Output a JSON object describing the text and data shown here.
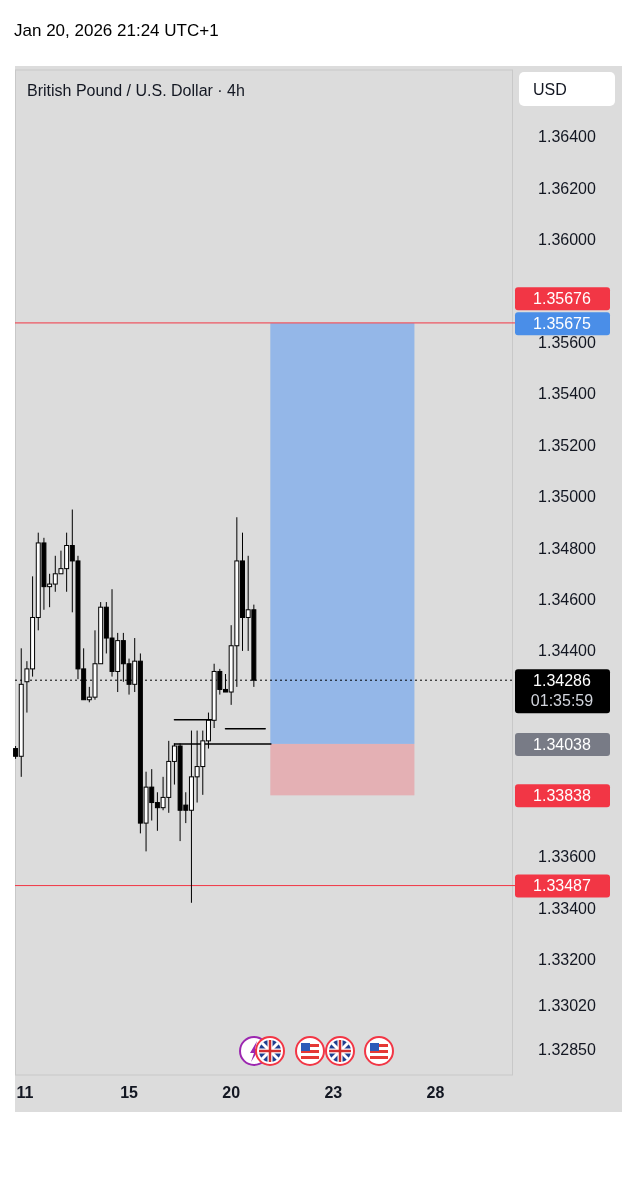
{
  "chart_data": {
    "type": "candlestick",
    "title": "British Pound / U.S. Dollar · 4h",
    "subtitle": "Jan 20, 2026 21:24 UTC+1",
    "ylabel": "USD",
    "categories": [
      null,
      "11",
      null,
      null,
      null,
      null,
      null,
      null,
      null,
      null,
      null,
      null,
      null,
      null,
      null,
      null,
      null,
      null,
      null,
      null,
      "15",
      null,
      null,
      null,
      null,
      null,
      null,
      null,
      null,
      null,
      null,
      null,
      null,
      null,
      null,
      null,
      null,
      null,
      "20",
      null,
      null,
      null,
      null,
      null,
      null,
      null,
      null,
      null,
      null,
      null,
      null,
      null,
      null,
      null,
      null,
      null,
      "23",
      null,
      null,
      null,
      null,
      null,
      null,
      null,
      null,
      null,
      null,
      null,
      null,
      null,
      null,
      null,
      null,
      null,
      "28",
      null,
      null,
      null,
      null,
      null,
      null,
      null,
      null,
      null,
      null,
      null,
      null,
      null
    ],
    "ohlc": [
      [
        1.3402,
        1.3403,
        1.3398,
        1.3399
      ],
      [
        1.3399,
        1.3441,
        1.3391,
        1.3427
      ],
      [
        1.3428,
        1.3436,
        1.3416,
        1.3433
      ],
      [
        1.3433,
        1.3469,
        1.343,
        1.3453
      ],
      [
        1.3453,
        1.3486,
        1.3448,
        1.3482
      ],
      [
        1.3482,
        1.3484,
        1.3456,
        1.3465
      ],
      [
        1.3465,
        1.347,
        1.3457,
        1.3466
      ],
      [
        1.3466,
        1.3477,
        1.3463,
        1.347
      ],
      [
        1.347,
        1.3479,
        1.347,
        1.3472
      ],
      [
        1.3472,
        1.3486,
        1.3463,
        1.3481
      ],
      [
        1.3481,
        1.3495,
        1.3455,
        1.3475
      ],
      [
        1.3475,
        1.3477,
        1.3429,
        1.3433
      ],
      [
        1.3433,
        1.3441,
        1.3421,
        1.3421
      ],
      [
        1.3421,
        1.3426,
        1.342,
        1.3422
      ],
      [
        1.3422,
        1.3448,
        1.3421,
        1.3435
      ],
      [
        1.3435,
        1.3459,
        1.3435,
        1.3457
      ],
      [
        1.3457,
        1.3459,
        1.3439,
        1.3445
      ],
      [
        1.3445,
        1.3464,
        1.343,
        1.3432
      ],
      [
        1.3432,
        1.3447,
        1.3424,
        1.3444
      ],
      [
        1.3444,
        1.3447,
        1.3428,
        1.3435
      ],
      [
        1.3435,
        1.3437,
        1.3423,
        1.3427
      ],
      [
        1.3427,
        1.3445,
        1.3424,
        1.3436
      ],
      [
        1.3436,
        1.3439,
        1.3369,
        1.3373
      ],
      [
        1.3373,
        1.3393,
        1.3362,
        1.3387
      ],
      [
        1.3387,
        1.3394,
        1.3374,
        1.3381
      ],
      [
        1.3381,
        1.3385,
        1.337,
        1.3379
      ],
      [
        1.3379,
        1.3391,
        1.3378,
        1.3383
      ],
      [
        1.3383,
        1.3405,
        1.3377,
        1.3397
      ],
      [
        1.3397,
        1.3404,
        1.3388,
        1.3403
      ],
      [
        1.3403,
        1.3404,
        1.3366,
        1.3378
      ],
      [
        1.338,
        1.3385,
        1.3373,
        1.3378
      ],
      [
        1.3378,
        1.3409,
        1.3342,
        1.3391
      ],
      [
        1.3391,
        1.3409,
        1.3381,
        1.3395
      ],
      [
        1.3395,
        1.3409,
        1.3384,
        1.3405
      ],
      [
        1.3405,
        1.3416,
        1.3402,
        1.3413
      ],
      [
        1.3413,
        1.3435,
        1.341,
        1.3432
      ],
      [
        1.3432,
        1.3433,
        1.3423,
        1.3425
      ],
      [
        1.3425,
        1.3431,
        1.3424,
        1.3424
      ],
      [
        1.3424,
        1.345,
        1.3419,
        1.3442
      ],
      [
        1.3442,
        1.3492,
        1.3426,
        1.3475
      ],
      [
        1.3475,
        1.3486,
        1.344,
        1.3453
      ],
      [
        1.3453,
        1.3477,
        1.344,
        1.3456
      ],
      [
        1.3456,
        1.3458,
        1.3426,
        1.34286
      ],
      null,
      null,
      null,
      null,
      null,
      null,
      null,
      null,
      null,
      null,
      null,
      null,
      null,
      null,
      null,
      null,
      null,
      null,
      null,
      null,
      null,
      null,
      null,
      null,
      null,
      null,
      null,
      null,
      null,
      null,
      null,
      null,
      null,
      null,
      null,
      null,
      null,
      null,
      null,
      null,
      null,
      null,
      null,
      null,
      null
    ],
    "series": [
      {
        "type": "line",
        "color": "#000000",
        "values": [
          null,
          null,
          null,
          null,
          null,
          null,
          null,
          null,
          null,
          null,
          null,
          null,
          null,
          null,
          null,
          null,
          null,
          null,
          null,
          null,
          null,
          null,
          null,
          null,
          null,
          null,
          null,
          null,
          1.34132,
          1.34132,
          1.34132,
          1.34132,
          1.34132,
          1.34132,
          1.34132,
          1.34132,
          null,
          null,
          null,
          null,
          null,
          null,
          null,
          null,
          null,
          null,
          null,
          null,
          null,
          null,
          null,
          null,
          null,
          null,
          null,
          null,
          null,
          null,
          null,
          null,
          null,
          null,
          null,
          null,
          null,
          null,
          null,
          null,
          null,
          null,
          null,
          null,
          null,
          null,
          null,
          null,
          null,
          null,
          null,
          null,
          null,
          null,
          null,
          null,
          null,
          null,
          null,
          null
        ]
      },
      {
        "type": "line",
        "color": "#000000",
        "values": [
          null,
          null,
          null,
          null,
          null,
          null,
          null,
          null,
          null,
          null,
          null,
          null,
          null,
          null,
          null,
          null,
          null,
          null,
          null,
          null,
          null,
          null,
          null,
          null,
          null,
          null,
          null,
          null,
          1.34038,
          1.34038,
          1.34038,
          1.34038,
          1.34038,
          1.34038,
          1.34038,
          1.34038,
          1.34038,
          1.34038,
          1.34038,
          1.34038,
          1.34038,
          1.34038,
          1.34038,
          1.34038,
          1.34038,
          1.34038,
          null,
          null,
          null,
          null,
          null,
          null,
          null,
          null,
          null,
          null,
          null,
          null,
          null,
          null,
          null,
          null,
          null,
          null,
          null,
          null,
          null,
          null,
          null,
          null,
          null,
          null,
          null,
          null,
          null,
          null,
          null,
          null,
          null,
          null,
          null,
          null,
          null,
          null,
          null,
          null,
          null,
          null
        ]
      },
      {
        "type": "line",
        "color": "#000000",
        "values": [
          null,
          null,
          null,
          null,
          null,
          null,
          null,
          null,
          null,
          null,
          null,
          null,
          null,
          null,
          null,
          null,
          null,
          null,
          null,
          null,
          null,
          null,
          null,
          null,
          null,
          null,
          null,
          null,
          null,
          null,
          null,
          null,
          null,
          null,
          null,
          null,
          null,
          1.34097,
          1.34097,
          1.34097,
          1.34097,
          1.34097,
          1.34097,
          1.34097,
          1.34097,
          null,
          null,
          null,
          null,
          null,
          null,
          null,
          null,
          null,
          null,
          null,
          null,
          null,
          null,
          null,
          null,
          null,
          null,
          null,
          null,
          null,
          null,
          null,
          null,
          null,
          null,
          null,
          null,
          null,
          null,
          null,
          null,
          null,
          null,
          null,
          null,
          null,
          null,
          null,
          null,
          null,
          null,
          null
        ]
      }
    ],
    "ylim": [
      1.3275,
      1.3666
    ],
    "yticks": [
      {
        "value": 1.364,
        "label": "1.36400"
      },
      {
        "value": 1.362,
        "label": "1.36200"
      },
      {
        "value": 1.36,
        "label": "1.36000"
      },
      {
        "value": 1.356,
        "label": "1.35600"
      },
      {
        "value": 1.354,
        "label": "1.35400"
      },
      {
        "value": 1.352,
        "label": "1.35200"
      },
      {
        "value": 1.35,
        "label": "1.35000"
      },
      {
        "value": 1.348,
        "label": "1.34800"
      },
      {
        "value": 1.346,
        "label": "1.34600"
      },
      {
        "value": 1.344,
        "label": "1.34400"
      },
      {
        "value": 1.336,
        "label": "1.33600"
      },
      {
        "value": 1.334,
        "label": "1.33400"
      },
      {
        "value": 1.332,
        "label": "1.33200"
      },
      {
        "value": 1.3302,
        "label": "1.33020"
      },
      {
        "value": 1.3285,
        "label": "1.32850"
      }
    ],
    "ref_lines": [
      {
        "axis": "y",
        "value": 1.35676,
        "label": "1.35676",
        "color": "#f23645",
        "line_style": "solid"
      },
      {
        "axis": "y",
        "value": 1.33487,
        "label": "1.33487",
        "color": "#f23645",
        "line_style": "solid"
      },
      {
        "axis": "y",
        "value": 1.34286,
        "label": "1.34286",
        "color": "#000000",
        "line_style": "dotted"
      }
    ],
    "bands": [
      {
        "axis": "y",
        "from": 1.34038,
        "to": 1.35675,
        "color": "#94b7e8"
      },
      {
        "axis": "y",
        "from": 1.33838,
        "to": 1.34038,
        "color": "#e4b0b4"
      }
    ],
    "annotations": [
      "01:35:59",
      "1.34038",
      "1.35675",
      "1.33838"
    ]
  }
}
